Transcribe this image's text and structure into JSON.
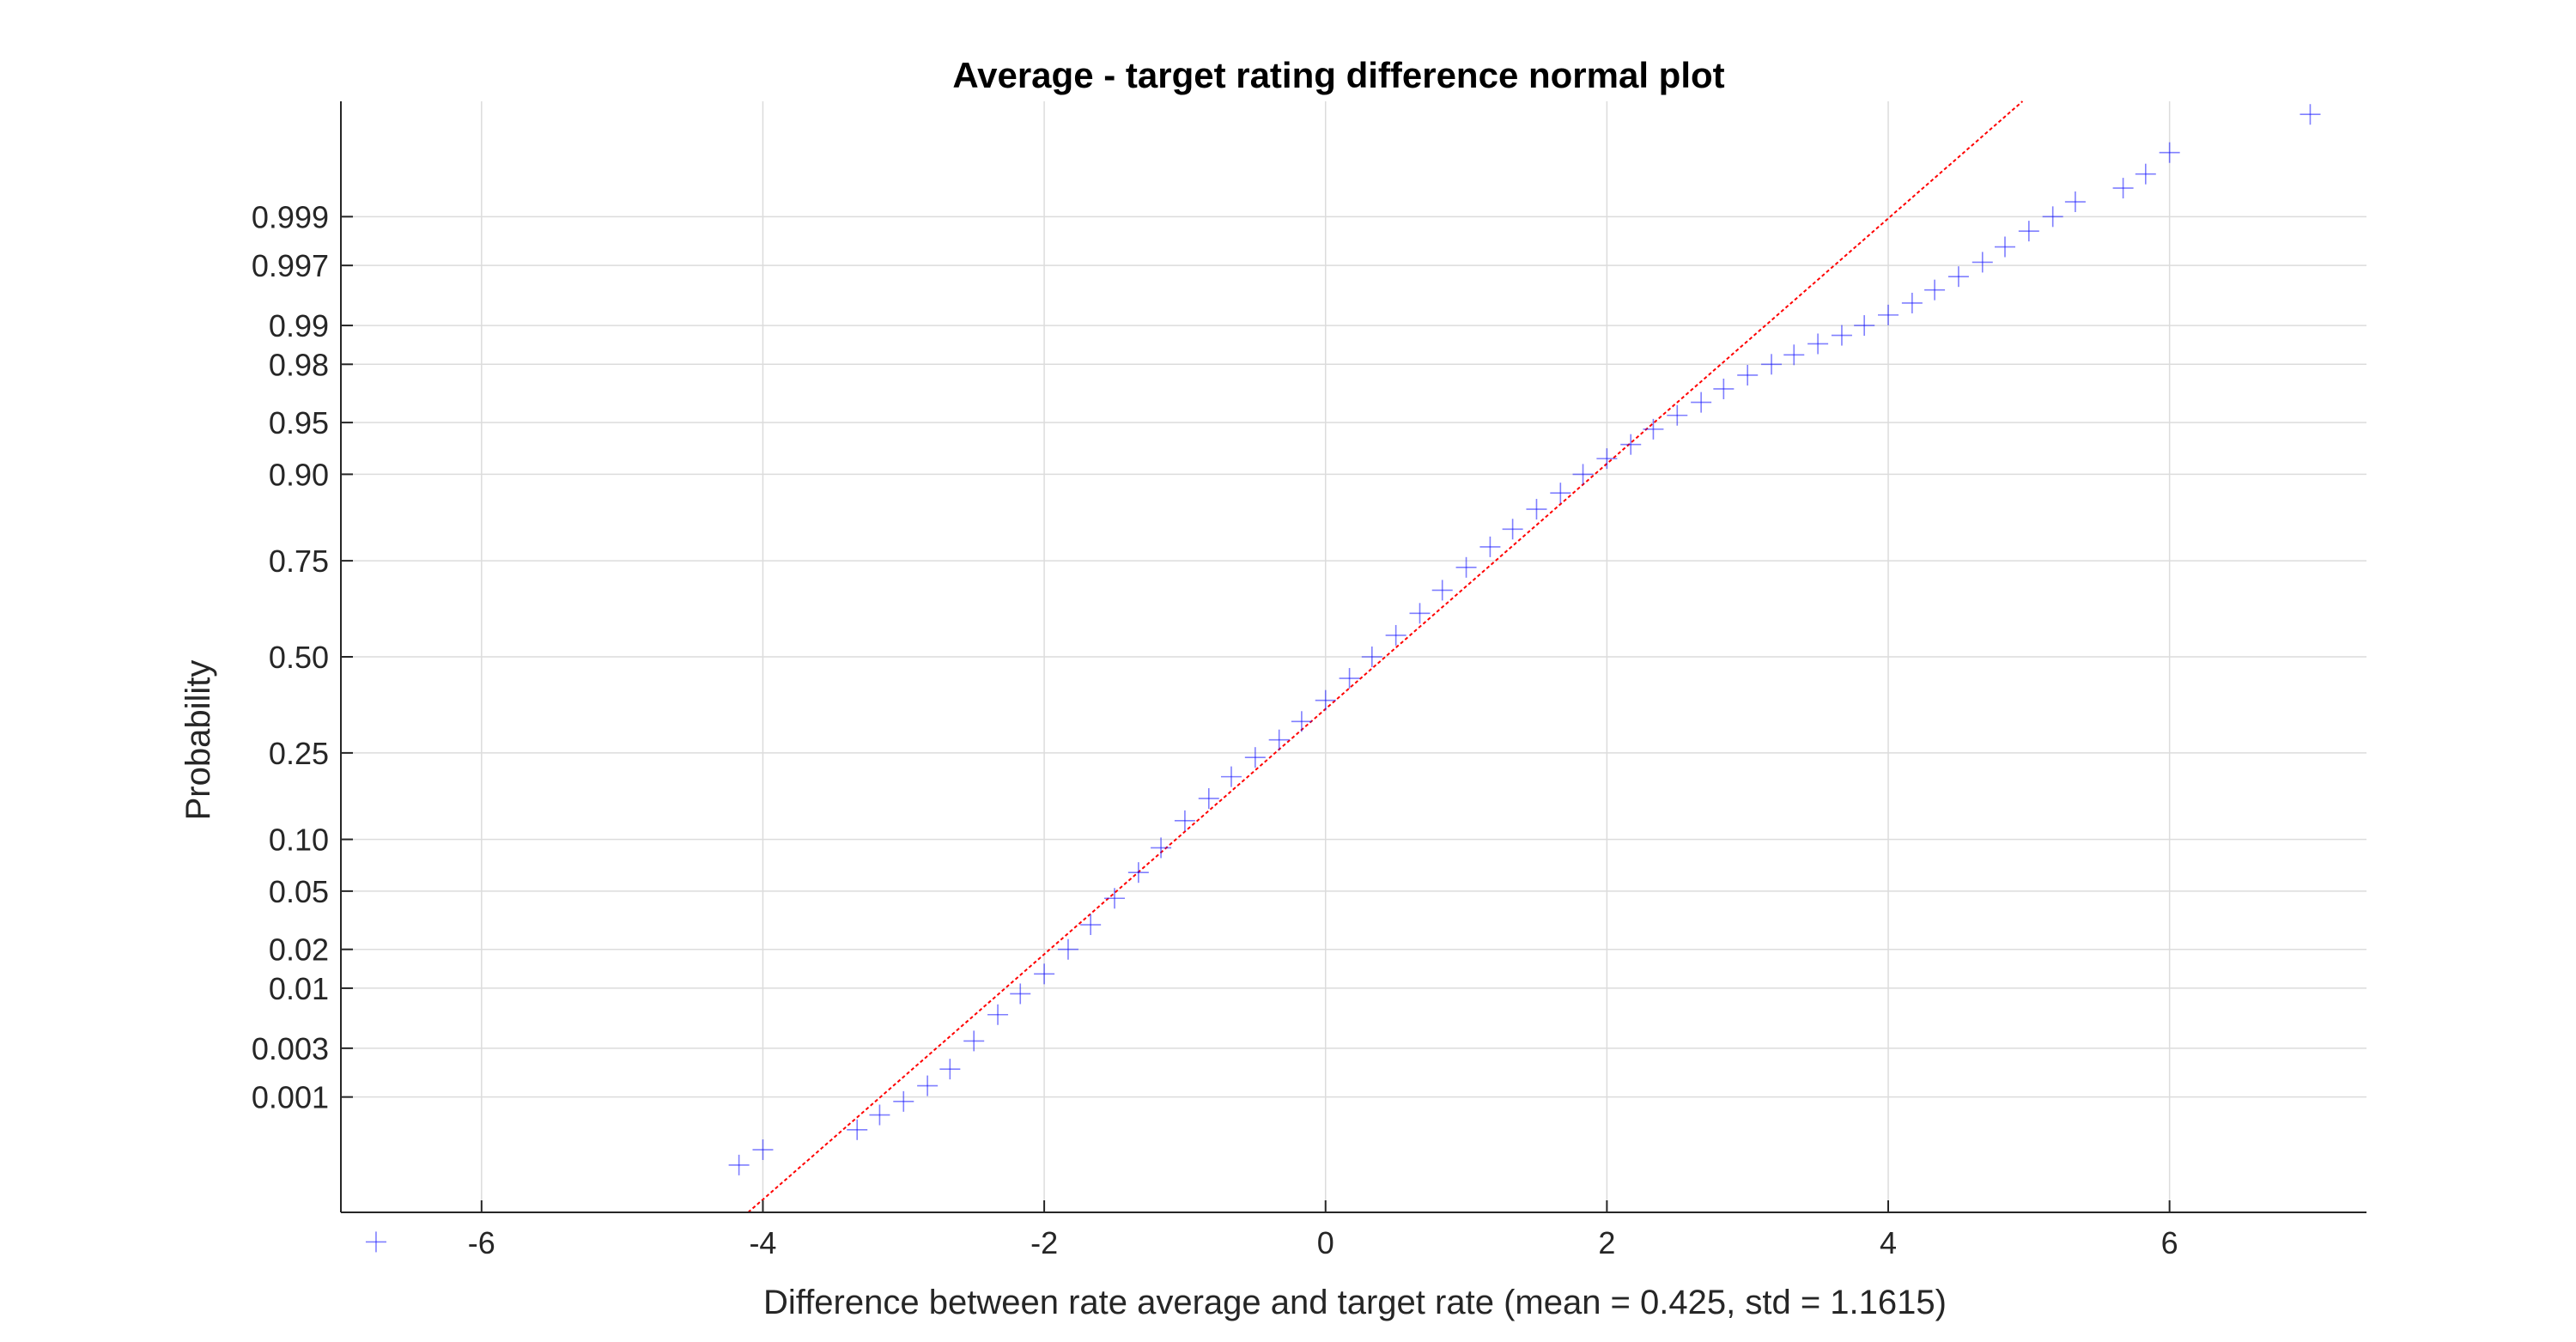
{
  "chart_data": {
    "type": "scatter",
    "subtype": "normal-probability-plot",
    "title": "Average - target rating difference normal plot",
    "xlabel": "Difference between rate average and target rate (mean = 0.425, std = 1.1615)",
    "ylabel": "Probability",
    "xlim": [
      -7.0,
      7.4
    ],
    "ylim_probability_z": [
      -3.9,
      3.9
    ],
    "x_ticks": [
      -6,
      -4,
      -2,
      0,
      2,
      4,
      6
    ],
    "y_ticks": [
      0.001,
      0.003,
      0.01,
      0.02,
      0.05,
      0.1,
      0.25,
      0.5,
      0.75,
      0.9,
      0.95,
      0.98,
      0.99,
      0.997,
      0.999
    ],
    "y_tick_labels": [
      "0.001",
      "0.003",
      "0.01",
      "0.02",
      "0.05",
      "0.10",
      "0.25",
      "0.50",
      "0.75",
      "0.90",
      "0.95",
      "0.98",
      "0.99",
      "0.997",
      "0.999"
    ],
    "grid": true,
    "marker": "+",
    "marker_color": "#1515ff",
    "reference_line": {
      "color": "#ff0000",
      "style": "dashed",
      "mean": 0.425,
      "std": 1.1615
    },
    "series": [
      {
        "points": [
          {
            "x": -6.75,
            "p": 2e-05
          },
          {
            "x": -4.17,
            "p": 0.00018
          },
          {
            "x": -4.0,
            "p": 0.00027
          },
          {
            "x": -3.33,
            "p": 0.00045
          },
          {
            "x": -3.17,
            "p": 0.00065
          },
          {
            "x": -3.0,
            "p": 0.0009
          },
          {
            "x": -2.83,
            "p": 0.0013
          },
          {
            "x": -2.67,
            "p": 0.0019
          },
          {
            "x": -2.5,
            "p": 0.0035
          },
          {
            "x": -2.33,
            "p": 0.006
          },
          {
            "x": -2.17,
            "p": 0.009
          },
          {
            "x": -2.0,
            "p": 0.013
          },
          {
            "x": -1.83,
            "p": 0.02
          },
          {
            "x": -1.67,
            "p": 0.03
          },
          {
            "x": -1.5,
            "p": 0.045
          },
          {
            "x": -1.33,
            "p": 0.065
          },
          {
            "x": -1.17,
            "p": 0.09
          },
          {
            "x": -1.0,
            "p": 0.125
          },
          {
            "x": -0.83,
            "p": 0.16
          },
          {
            "x": -0.67,
            "p": 0.2
          },
          {
            "x": -0.5,
            "p": 0.24
          },
          {
            "x": -0.33,
            "p": 0.28
          },
          {
            "x": -0.17,
            "p": 0.325
          },
          {
            "x": 0.0,
            "p": 0.38
          },
          {
            "x": 0.17,
            "p": 0.44
          },
          {
            "x": 0.33,
            "p": 0.5
          },
          {
            "x": 0.5,
            "p": 0.56
          },
          {
            "x": 0.67,
            "p": 0.62
          },
          {
            "x": 0.83,
            "p": 0.68
          },
          {
            "x": 1.0,
            "p": 0.735
          },
          {
            "x": 1.17,
            "p": 0.78
          },
          {
            "x": 1.33,
            "p": 0.815
          },
          {
            "x": 1.5,
            "p": 0.85
          },
          {
            "x": 1.67,
            "p": 0.875
          },
          {
            "x": 1.83,
            "p": 0.9
          },
          {
            "x": 2.0,
            "p": 0.918
          },
          {
            "x": 2.17,
            "p": 0.932
          },
          {
            "x": 2.33,
            "p": 0.945
          },
          {
            "x": 2.5,
            "p": 0.955
          },
          {
            "x": 2.67,
            "p": 0.963
          },
          {
            "x": 2.83,
            "p": 0.97
          },
          {
            "x": 3.0,
            "p": 0.976
          },
          {
            "x": 3.17,
            "p": 0.98
          },
          {
            "x": 3.33,
            "p": 0.983
          },
          {
            "x": 3.5,
            "p": 0.986
          },
          {
            "x": 3.67,
            "p": 0.988
          },
          {
            "x": 3.83,
            "p": 0.99
          },
          {
            "x": 4.0,
            "p": 0.9918
          },
          {
            "x": 4.17,
            "p": 0.9935
          },
          {
            "x": 4.33,
            "p": 0.995
          },
          {
            "x": 4.5,
            "p": 0.9962
          },
          {
            "x": 4.67,
            "p": 0.9972
          },
          {
            "x": 4.83,
            "p": 0.998
          },
          {
            "x": 5.0,
            "p": 0.9986
          },
          {
            "x": 5.17,
            "p": 0.999
          },
          {
            "x": 5.33,
            "p": 0.9993
          },
          {
            "x": 5.67,
            "p": 0.9995
          },
          {
            "x": 5.83,
            "p": 0.99965
          },
          {
            "x": 6.0,
            "p": 0.9998
          },
          {
            "x": 7.0,
            "p": 0.99993
          }
        ]
      }
    ]
  }
}
